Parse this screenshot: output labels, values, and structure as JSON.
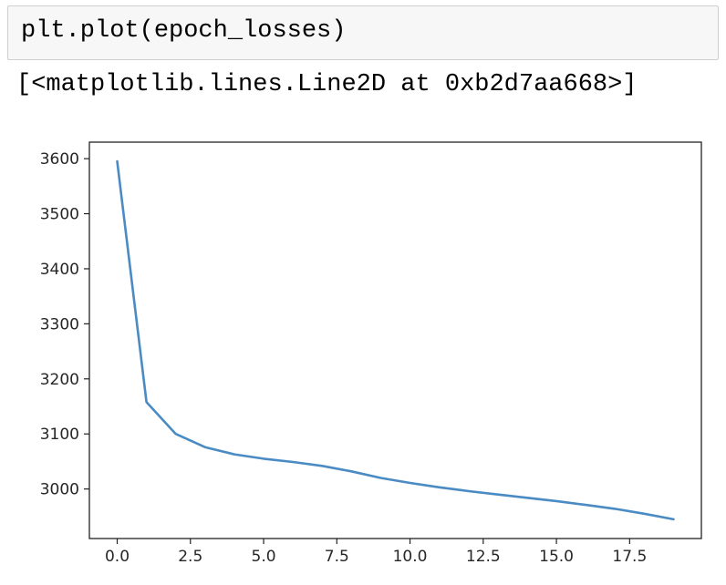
{
  "input_cell": {
    "code": "plt.plot(epoch_losses)"
  },
  "output_cell": {
    "text": "[<matplotlib.lines.Line2D at 0xb2d7aa668>]"
  },
  "chart_data": {
    "type": "line",
    "title": "",
    "xlabel": "",
    "ylabel": "",
    "xlim": [
      -0.95,
      19.95
    ],
    "ylim": [
      2910,
      3630
    ],
    "xticks": [
      0.0,
      2.5,
      5.0,
      7.5,
      10.0,
      12.5,
      15.0,
      17.5
    ],
    "xtick_labels": [
      "0.0",
      "2.5",
      "5.0",
      "7.5",
      "10.0",
      "12.5",
      "15.0",
      "17.5"
    ],
    "yticks": [
      3000,
      3100,
      3200,
      3300,
      3400,
      3500,
      3600
    ],
    "ytick_labels": [
      "3000",
      "3100",
      "3200",
      "3300",
      "3400",
      "3500",
      "3600"
    ],
    "grid": false,
    "series": [
      {
        "color": "#4a8bc3",
        "x": [
          0,
          1,
          2,
          3,
          4,
          5,
          6,
          7,
          8,
          9,
          10,
          11,
          12,
          13,
          14,
          15,
          16,
          17,
          18,
          19
        ],
        "y": [
          3595,
          3158,
          3100,
          3076,
          3063,
          3055,
          3049,
          3042,
          3032,
          3020,
          3011,
          3003,
          2996,
          2990,
          2984,
          2978,
          2971,
          2964,
          2955,
          2945
        ]
      }
    ]
  }
}
